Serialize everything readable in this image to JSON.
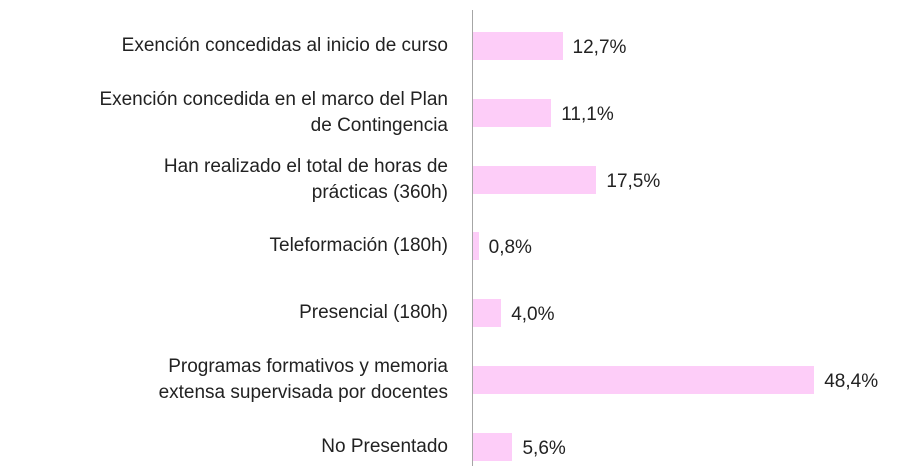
{
  "chart_data": {
    "type": "bar",
    "orientation": "horizontal",
    "color": "#fdcdf8",
    "categories": [
      "Exención concedidas al inicio de curso",
      "Exención concedida en el marco del Plan\nde Contingencia",
      "Han realizado el total de horas de\nprácticas (360h)",
      "Teleformación (180h)",
      "Presencial (180h)",
      "Programas formativos y memoria\nextensa supervisada por docentes",
      "No Presentado"
    ],
    "values": [
      12.7,
      11.1,
      17.5,
      0.8,
      4.0,
      48.4,
      5.6
    ],
    "value_labels": [
      "12,7%",
      "11,1%",
      "17,5%",
      "0,8%",
      "4,0%",
      "48,4%",
      "5,6%"
    ]
  }
}
